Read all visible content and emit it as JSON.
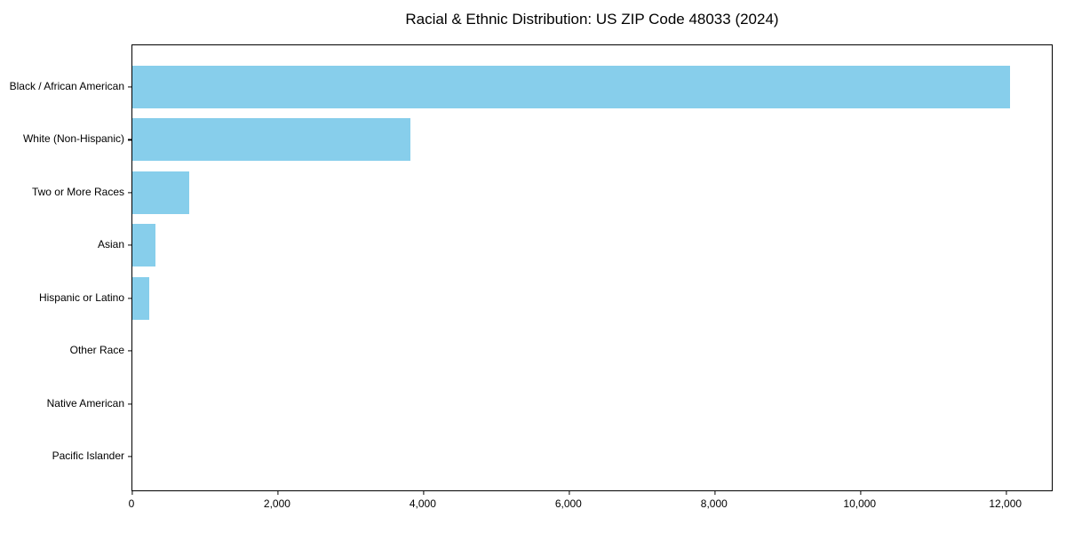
{
  "chart_data": {
    "type": "bar",
    "orientation": "horizontal",
    "title": "Racial & Ethnic Distribution: US ZIP Code 48033 (2024)",
    "categories": [
      "Black / African American",
      "White (Non-Hispanic)",
      "Two or More Races",
      "Asian",
      "Hispanic or Latino",
      "Other Race",
      "Native American",
      "Pacific Islander"
    ],
    "values": [
      12050,
      3820,
      780,
      320,
      230,
      0,
      0,
      0
    ],
    "xlabel": "",
    "ylabel": "",
    "xlim": [
      0,
      12650
    ],
    "x_ticks": [
      0,
      2000,
      4000,
      6000,
      8000,
      10000,
      12000
    ],
    "x_tick_labels": [
      "0",
      "2,000",
      "4,000",
      "6,000",
      "8,000",
      "10,000",
      "12,000"
    ],
    "bar_color": "#87CEEB",
    "axis_color": "#000000",
    "background_color": "#ffffff",
    "grid": false,
    "legend": null
  }
}
